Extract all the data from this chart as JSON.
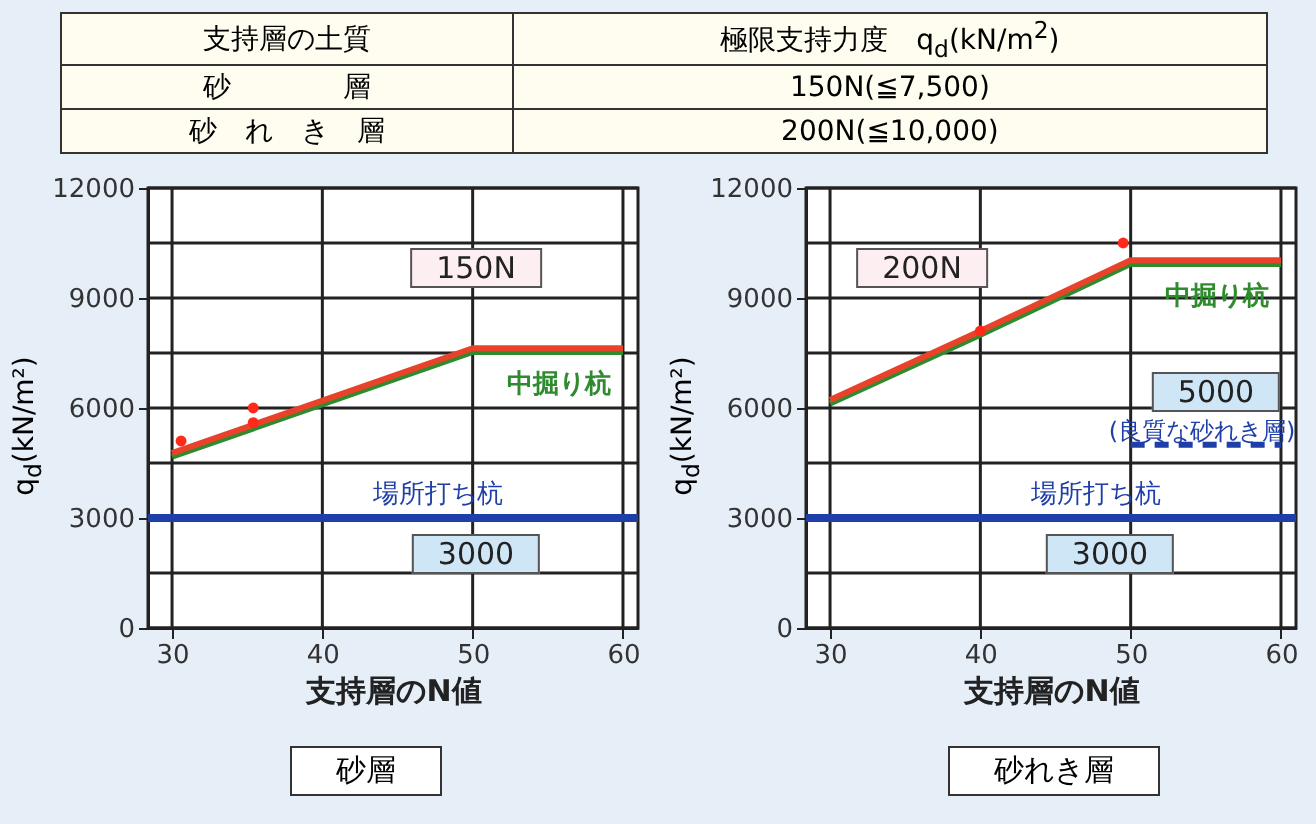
{
  "chart_data": [
    {
      "type": "other",
      "annotations": [
        "支持層の土質",
        "極限支持力度　q$_{d}$(kN/m$^{2}$)",
        "砂　　　　層",
        "150N(≦7,500)",
        "砂　れ　き　層",
        "200N(≦10,000)"
      ]
    },
    {
      "type": "line",
      "xlabel": "支持層のN値",
      "ylabel": "q$_{d}$(kN/m²)",
      "xlim": [
        28.4,
        61
      ],
      "ylim": [
        0,
        12000
      ],
      "xticks": [
        30,
        40,
        50,
        60
      ],
      "yticks": [
        0,
        {
          "value": 1500,
          "label": null
        },
        3000,
        {
          "value": 4500,
          "label": null
        },
        6000,
        {
          "value": 7500,
          "label": null
        },
        9000,
        {
          "value": 10500,
          "label": null
        },
        12000
      ],
      "grid": true,
      "series": [
        {
          "name": "中掘り杭",
          "color": "#2e8b2e",
          "x": [
            30,
            50,
            60
          ],
          "values": [
            4670,
            7530,
            7530
          ]
        },
        {
          "color": "#e8432a",
          "x": [
            30,
            50,
            60
          ],
          "values": [
            4770,
            7630,
            7630
          ]
        },
        {
          "type": "scatter",
          "color": "#ff2a1a",
          "x": [
            30.6,
            35.4,
            35.4
          ],
          "values": [
            5100,
            6000,
            5600
          ]
        }
      ],
      "ref_lines": [
        {
          "axis": "y",
          "value": 3000,
          "label": "場所打ち杭",
          "color": "#1f3fa8"
        }
      ],
      "annotations": [
        "150N",
        "3000",
        "砂層"
      ]
    },
    {
      "type": "line",
      "xlabel": "支持層のN値",
      "ylabel": "q$_{d}$(kN/m²)",
      "xlim": [
        28.4,
        61
      ],
      "ylim": [
        0,
        12000
      ],
      "xticks": [
        30,
        40,
        50,
        60
      ],
      "yticks": [
        0,
        {
          "value": 1500,
          "label": null
        },
        3000,
        {
          "value": 4500,
          "label": null
        },
        6000,
        {
          "value": 7500,
          "label": null
        },
        9000,
        {
          "value": 10500,
          "label": null
        },
        12000
      ],
      "grid": true,
      "series": [
        {
          "name": "中掘り杭",
          "color": "#2e8b2e",
          "x": [
            30,
            40,
            50,
            60
          ],
          "values": [
            6120,
            8000,
            9930,
            9930
          ]
        },
        {
          "color": "#e8432a",
          "x": [
            30,
            40,
            50,
            60
          ],
          "values": [
            6220,
            8100,
            10030,
            10030
          ]
        },
        {
          "type": "scatter",
          "color": "#ff2a1a",
          "x": [
            40,
            49.5
          ],
          "values": [
            8100,
            10500
          ]
        },
        {
          "color": "#1f3fa8",
          "line_style": "dashed",
          "x": [
            50,
            60
          ],
          "values": [
            5000,
            5000
          ]
        }
      ],
      "ref_lines": [
        {
          "axis": "y",
          "value": 3000,
          "label": "場所打ち杭",
          "color": "#1f3fa8"
        }
      ],
      "annotations": [
        "200N",
        "5000",
        "(良質な砂れき層)",
        "3000",
        "砂れき層"
      ]
    }
  ]
}
